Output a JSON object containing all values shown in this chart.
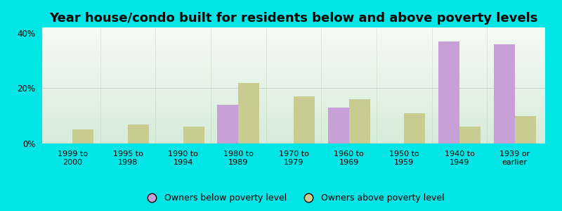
{
  "title": "Year house/condo built for residents below and above poverty levels",
  "categories": [
    "1999 to\n2000",
    "1995 to\n1998",
    "1990 to\n1994",
    "1980 to\n1989",
    "1970 to\n1979",
    "1960 to\n1969",
    "1950 to\n1959",
    "1940 to\n1949",
    "1939 or\nearlier"
  ],
  "below_poverty": [
    0,
    0,
    0,
    14,
    0,
    13,
    0,
    37,
    36
  ],
  "above_poverty": [
    5,
    7,
    6,
    22,
    17,
    16,
    11,
    6,
    10
  ],
  "below_color": "#c8a0d8",
  "above_color": "#c8cc90",
  "background_outer": "#00e5e5",
  "ylim": [
    0,
    42
  ],
  "yticks": [
    0,
    20,
    40
  ],
  "ytick_labels": [
    "0%",
    "20%",
    "40%"
  ],
  "legend_below": "Owners below poverty level",
  "legend_above": "Owners above poverty level",
  "bar_width": 0.38,
  "title_fontsize": 13,
  "tick_fontsize": 8,
  "legend_fontsize": 9
}
